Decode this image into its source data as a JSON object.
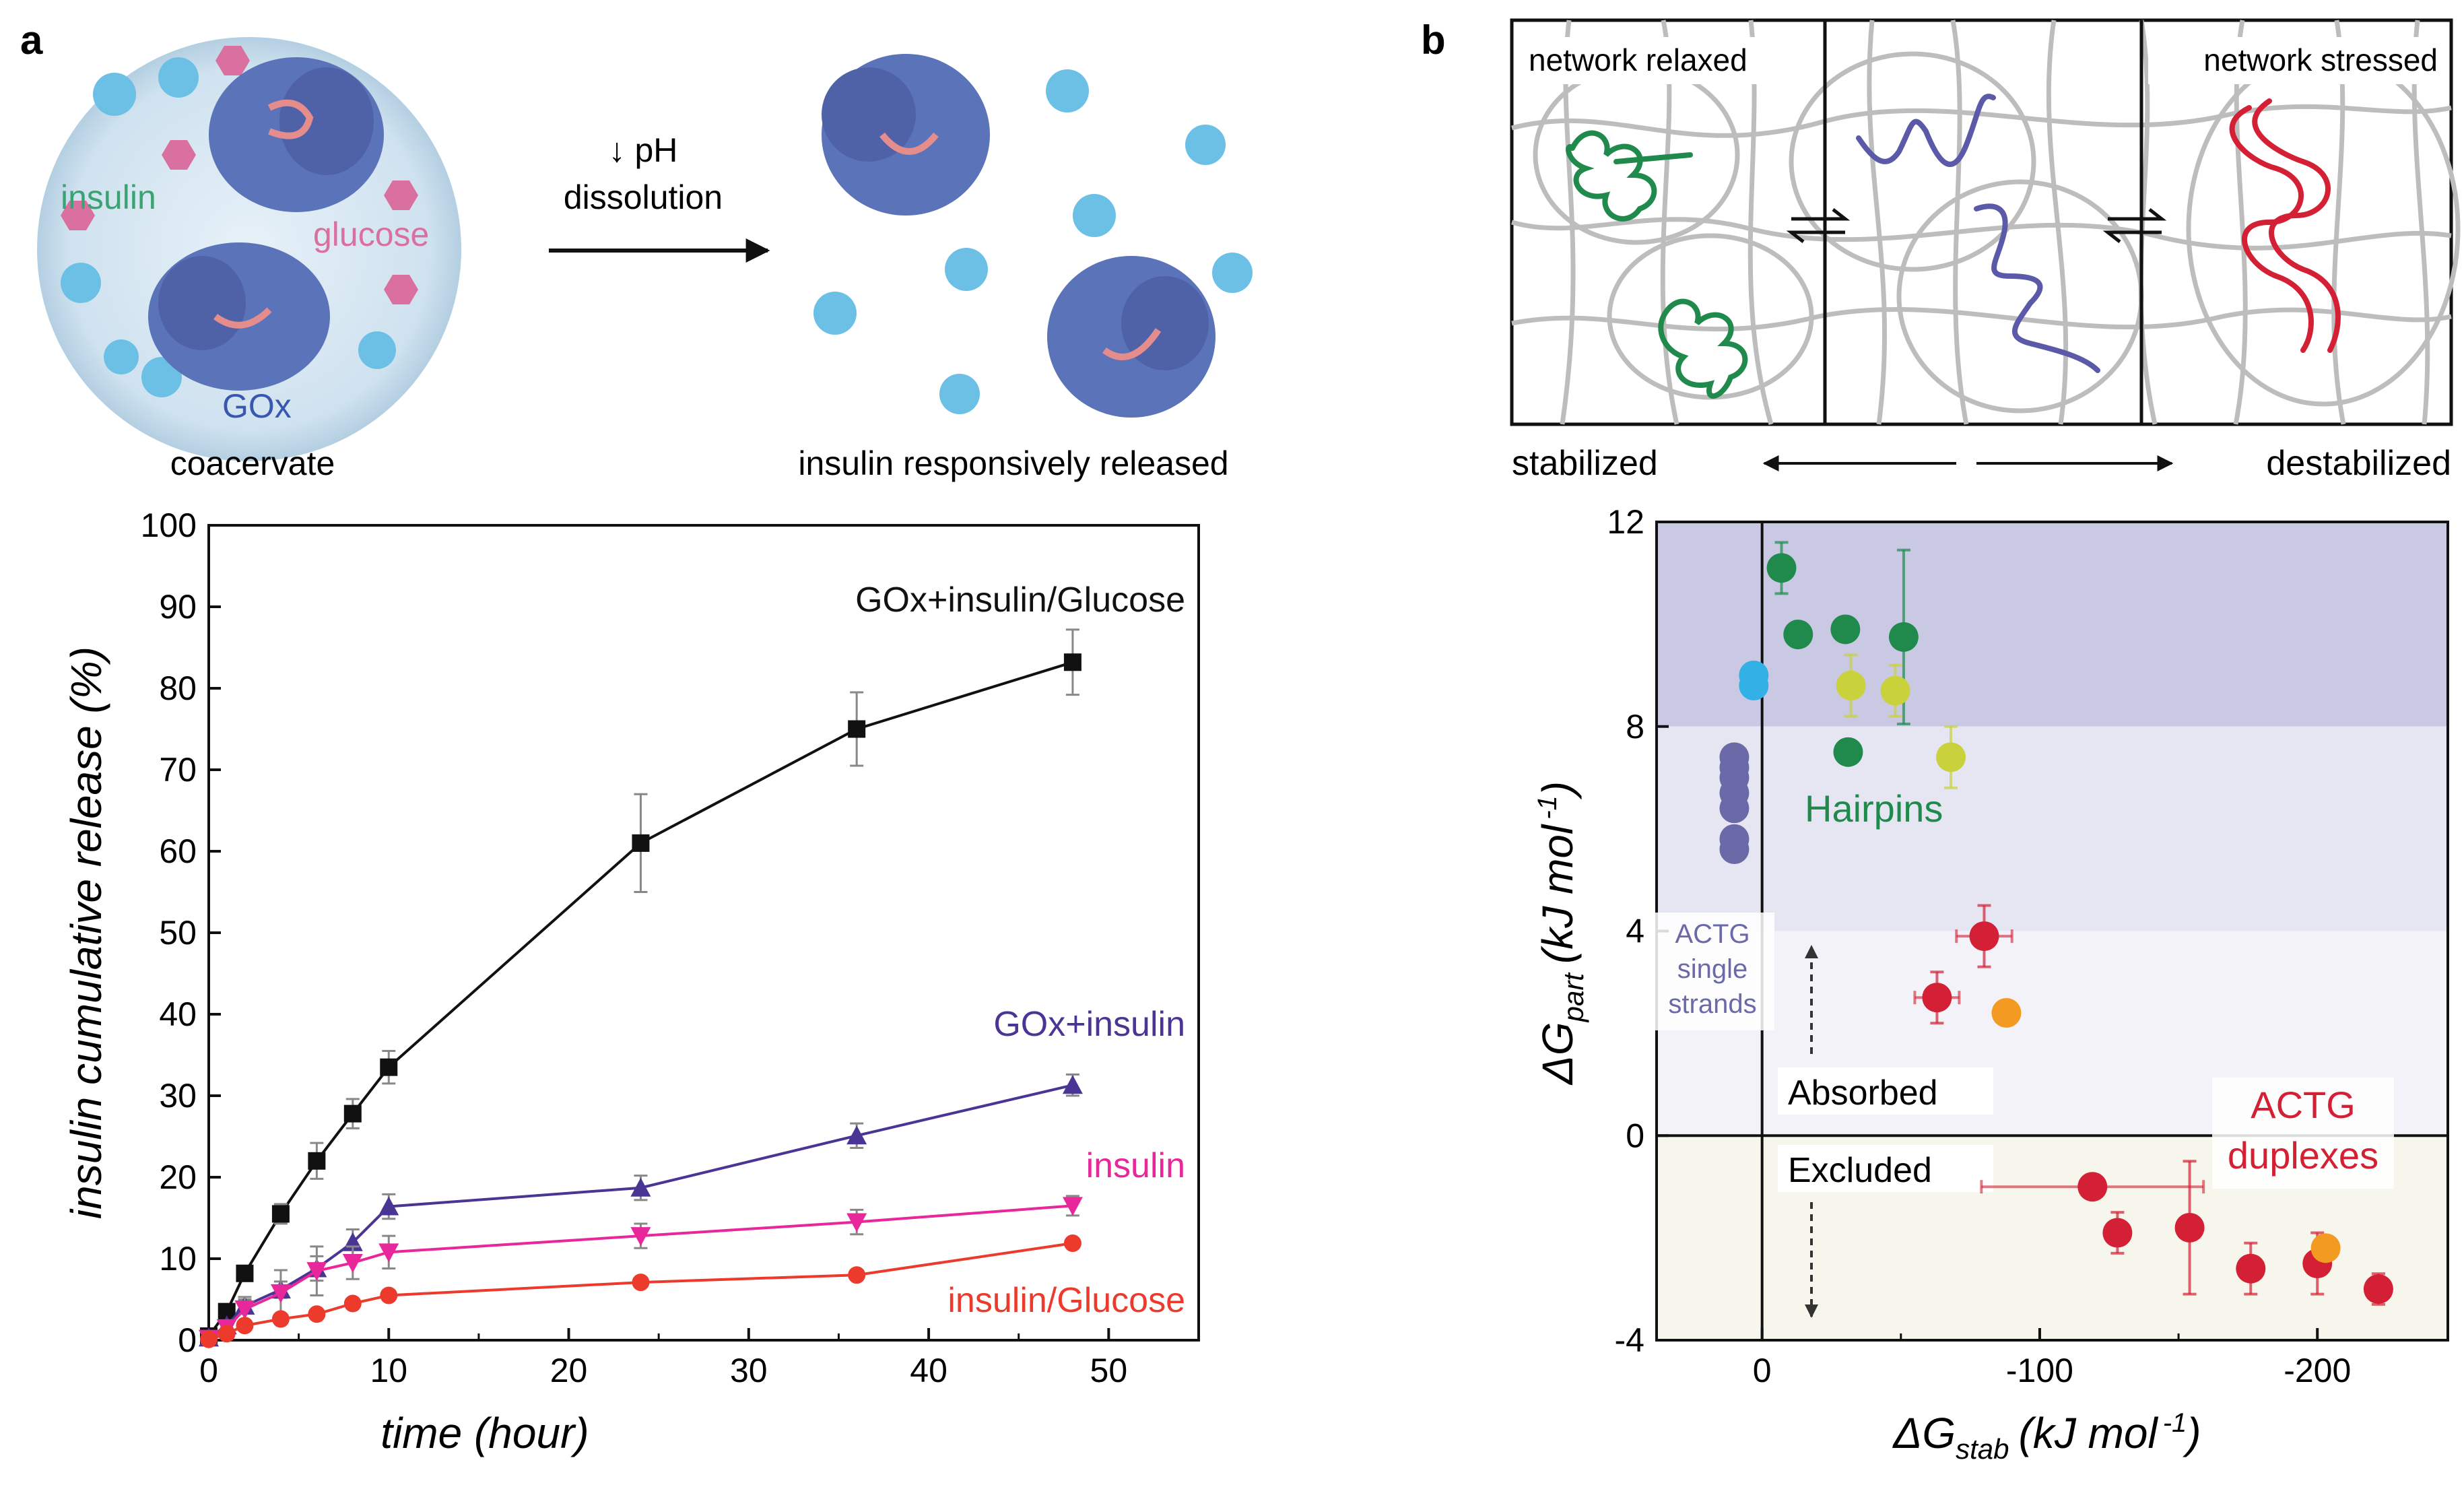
{
  "panel_a": {
    "label": "a",
    "schematic": {
      "insulin_label": "insulin",
      "glucose_label": "glucose",
      "gox_label": "GOx",
      "coacervate_label": "coacervate",
      "arrow_line1": "↓ pH",
      "arrow_line2": "dissolution",
      "released_label": "insulin responsively released"
    }
  },
  "panel_b": {
    "label": "b",
    "schematic": {
      "relaxed_label": "network relaxed",
      "stressed_label": "network stressed",
      "stabilized_label": "stabilized",
      "destabilized_label": "destabilized"
    }
  },
  "colors": {
    "black_series": "#111111",
    "purple_series": "#4b3594",
    "magenta_series": "#e8279a",
    "red_series": "#ec3a2c",
    "hairpin_green": "#1f8a4c",
    "duplex_red": "#d42035",
    "single_strand_blue": "#6b6aa8",
    "protein_cyan": "#6cc0e6",
    "glucose_pink": "#d9709f"
  },
  "chart_data": [
    {
      "type": "line",
      "title": "",
      "xlabel": "time (hour)",
      "ylabel": "insulin cumulative release (%)",
      "xlim": [
        0,
        55
      ],
      "ylim": [
        0,
        100
      ],
      "x_ticks": [
        0,
        10,
        20,
        30,
        40,
        50
      ],
      "y_ticks": [
        0,
        10,
        20,
        30,
        40,
        50,
        60,
        70,
        80,
        90,
        100
      ],
      "legend": "inline labels at right",
      "series": [
        {
          "name": "GOx+insulin/Glucose",
          "marker": "square",
          "color": "#111111",
          "x": [
            0,
            1,
            2,
            4,
            6,
            8,
            10,
            24,
            36,
            48
          ],
          "y": [
            0.5,
            3.5,
            8.2,
            15.5,
            22,
            27.8,
            33.5,
            61,
            75,
            83.2
          ],
          "err": [
            0,
            0.5,
            0.8,
            1.2,
            2.2,
            1.8,
            2,
            6,
            4.5,
            4
          ]
        },
        {
          "name": "GOx+insulin",
          "marker": "triangle-up",
          "color": "#4b3594",
          "x": [
            0,
            1,
            2,
            4,
            6,
            8,
            10,
            24,
            36,
            48
          ],
          "y": [
            0.3,
            1.8,
            4.2,
            6.2,
            8.8,
            12,
            16.4,
            18.7,
            25.1,
            31.3
          ],
          "err": [
            0,
            0.4,
            0.8,
            1,
            1.5,
            1.6,
            1.5,
            1.5,
            1.5,
            1.3
          ]
        },
        {
          "name": "insulin",
          "marker": "triangle-down",
          "color": "#e8279a",
          "x": [
            0,
            1,
            2,
            4,
            6,
            8,
            10,
            24,
            36,
            48
          ],
          "y": [
            0.2,
            1.5,
            3.8,
            5.8,
            8.5,
            9.5,
            10.8,
            12.8,
            14.5,
            16.5
          ],
          "err": [
            0,
            0.5,
            1.5,
            2.8,
            3,
            2,
            2,
            1.5,
            1.5,
            1.2
          ]
        },
        {
          "name": "insulin/Glucose",
          "marker": "circle",
          "color": "#ec3a2c",
          "x": [
            0,
            1,
            2,
            4,
            6,
            8,
            10,
            24,
            36,
            48
          ],
          "y": [
            0.1,
            0.8,
            1.8,
            2.6,
            3.2,
            4.5,
            5.5,
            7.1,
            8,
            11.9
          ],
          "err": [
            0,
            0.2,
            0.3,
            0.3,
            0.3,
            0.3,
            0.3,
            0.3,
            0.3,
            0.3
          ]
        }
      ]
    },
    {
      "type": "scatter",
      "title": "",
      "xlabel": "ΔGstab (kJ mol⁻¹)",
      "ylabel": "ΔGpart (kJ mol⁻¹)",
      "xlabel_parts": {
        "delta": "ΔG",
        "sub": "stab",
        "unit": "(kJ mol",
        "exp": "-1",
        "close": ")"
      },
      "ylabel_parts": {
        "delta": "ΔG",
        "sub": "part",
        "unit": "(kJ mol",
        "exp": "-1",
        "close": ")"
      },
      "x_reversed": true,
      "xlim": [
        38,
        -247
      ],
      "ylim": [
        -4,
        12
      ],
      "x_ticks": [
        0,
        -100,
        -200
      ],
      "y_ticks": [
        -4,
        0,
        4,
        8,
        12
      ],
      "bands": [
        {
          "from": 8,
          "to": 12,
          "color": "#c9c9e4"
        },
        {
          "from": 4,
          "to": 8,
          "color": "#e6e6f3"
        },
        {
          "from": 0,
          "to": 4,
          "color": "#f2f2f8"
        },
        {
          "from": -4,
          "to": 0,
          "color": "#f6f6ec"
        }
      ],
      "annotations": {
        "hairpins": "Hairpins",
        "single_line1": "ACTG",
        "single_line2": "single",
        "single_line3": "strands",
        "duplex_line1": "ACTG",
        "duplex_line2": "duplexes",
        "absorbed": "Absorbed",
        "excluded": "Excluded"
      },
      "series": [
        {
          "name": "ACTG single strands",
          "color": "#6b6aa8",
          "points": [
            {
              "x": 10,
              "y": 7.4
            },
            {
              "x": 10,
              "y": 7.0
            },
            {
              "x": 10,
              "y": 6.7
            },
            {
              "x": 10,
              "y": 6.4
            },
            {
              "x": 10,
              "y": 7.2
            },
            {
              "x": 10,
              "y": 5.8
            },
            {
              "x": 10,
              "y": 5.6
            }
          ]
        },
        {
          "name": "single strand (cyan)",
          "color": "#33b1e6",
          "points": [
            {
              "x": 3,
              "y": 9.0
            },
            {
              "x": 3,
              "y": 8.8
            }
          ]
        },
        {
          "name": "Hairpins",
          "color": "#1f8a4c",
          "points": [
            {
              "x": -7,
              "y": 11.1,
              "ey": 0.5
            },
            {
              "x": -13,
              "y": 9.8
            },
            {
              "x": -30,
              "y": 9.9
            },
            {
              "x": -31,
              "y": 7.5
            },
            {
              "x": -51,
              "y": 9.75,
              "ey": 1.7
            }
          ]
        },
        {
          "name": "Hairpins (yellow)",
          "color": "#c9d23b",
          "points": [
            {
              "x": -32,
              "y": 8.8,
              "ey": 0.6
            },
            {
              "x": -48,
              "y": 8.7,
              "ey": 0.5
            },
            {
              "x": -68,
              "y": 7.4,
              "ey": 0.6
            }
          ]
        },
        {
          "name": "ACTG duplexes",
          "color": "#d42035",
          "points": [
            {
              "x": -80,
              "y": 3.9,
              "ey": 0.6,
              "ex": 10
            },
            {
              "x": -63,
              "y": 2.7,
              "ey": 0.5,
              "ex": 8
            },
            {
              "x": -119,
              "y": -1.0,
              "ex": 40
            },
            {
              "x": -128,
              "y": -1.9,
              "ey": 0.4
            },
            {
              "x": -154,
              "y": -1.8,
              "ey": 1.3
            },
            {
              "x": -176,
              "y": -2.6,
              "ey": 0.5
            },
            {
              "x": -200,
              "y": -2.5,
              "ey": 0.6
            },
            {
              "x": -222,
              "y": -3.0,
              "ey": 0.3
            }
          ]
        },
        {
          "name": "duplex (orange)",
          "color": "#f39a22",
          "points": [
            {
              "x": -88,
              "y": 2.4
            },
            {
              "x": -203,
              "y": -2.2
            }
          ]
        }
      ]
    }
  ]
}
